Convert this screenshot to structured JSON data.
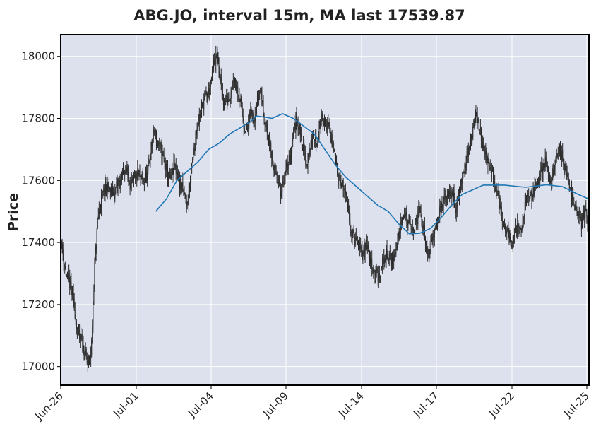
{
  "chart_data": {
    "type": "candlestick",
    "title": "ABG.JO, interval 15m, MA last 17539.87",
    "xlabel": "",
    "ylabel": "Price",
    "ylim": [
      16940,
      18070
    ],
    "y_ticks": [
      17000,
      17200,
      17400,
      17600,
      17800,
      18000
    ],
    "x_ticks": [
      "Jun-26",
      "Jul-01",
      "Jul-04",
      "Jul-09",
      "Jul-14",
      "Jul-17",
      "Jul-22",
      "Jul-25"
    ],
    "grid": true,
    "colors": {
      "background": "#dde1ee",
      "grid": "#ffffff",
      "candle": "#2b2b2b",
      "ma_line": "#1f77b4",
      "frame": "#000000"
    },
    "price_path": [
      [
        0,
        17400
      ],
      [
        1,
        17320
      ],
      [
        2,
        17280
      ],
      [
        3,
        17250
      ],
      [
        4,
        17180
      ],
      [
        5,
        17100
      ],
      [
        6,
        17080
      ],
      [
        7,
        17050
      ],
      [
        8,
        17000
      ],
      [
        9,
        17050
      ],
      [
        10,
        17320
      ],
      [
        11,
        17480
      ],
      [
        12,
        17540
      ],
      [
        13,
        17570
      ],
      [
        14,
        17580
      ],
      [
        15,
        17560
      ],
      [
        16,
        17560
      ],
      [
        17,
        17590
      ],
      [
        18,
        17600
      ],
      [
        19,
        17640
      ],
      [
        20,
        17620
      ],
      [
        21,
        17580
      ],
      [
        22,
        17600
      ],
      [
        23,
        17620
      ],
      [
        24,
        17600
      ],
      [
        25,
        17600
      ],
      [
        26,
        17620
      ],
      [
        27,
        17700
      ],
      [
        28,
        17760
      ],
      [
        29,
        17720
      ],
      [
        30,
        17700
      ],
      [
        31,
        17660
      ],
      [
        32,
        17620
      ],
      [
        33,
        17600
      ],
      [
        34,
        17650
      ],
      [
        35,
        17620
      ],
      [
        36,
        17580
      ],
      [
        37,
        17560
      ],
      [
        38,
        17520
      ],
      [
        39,
        17620
      ],
      [
        40,
        17700
      ],
      [
        41,
        17780
      ],
      [
        42,
        17820
      ],
      [
        43,
        17860
      ],
      [
        44,
        17880
      ],
      [
        45,
        17900
      ],
      [
        46,
        17980
      ],
      [
        47,
        18000
      ],
      [
        48,
        17920
      ],
      [
        49,
        17850
      ],
      [
        50,
        17860
      ],
      [
        51,
        17880
      ],
      [
        52,
        17940
      ],
      [
        53,
        17900
      ],
      [
        54,
        17860
      ],
      [
        55,
        17780
      ],
      [
        56,
        17760
      ],
      [
        57,
        17820
      ],
      [
        58,
        17800
      ],
      [
        59,
        17850
      ],
      [
        60,
        17900
      ],
      [
        61,
        17820
      ],
      [
        62,
        17760
      ],
      [
        63,
        17700
      ],
      [
        64,
        17650
      ],
      [
        65,
        17600
      ],
      [
        66,
        17560
      ],
      [
        67,
        17600
      ],
      [
        68,
        17640
      ],
      [
        69,
        17680
      ],
      [
        70,
        17760
      ],
      [
        71,
        17800
      ],
      [
        72,
        17760
      ],
      [
        73,
        17700
      ],
      [
        74,
        17650
      ],
      [
        75,
        17700
      ],
      [
        76,
        17740
      ],
      [
        77,
        17720
      ],
      [
        78,
        17780
      ],
      [
        79,
        17800
      ],
      [
        80,
        17780
      ],
      [
        81,
        17760
      ],
      [
        82,
        17700
      ],
      [
        83,
        17650
      ],
      [
        84,
        17600
      ],
      [
        85,
        17580
      ],
      [
        86,
        17540
      ],
      [
        87,
        17460
      ],
      [
        88,
        17420
      ],
      [
        89,
        17400
      ],
      [
        90,
        17380
      ],
      [
        91,
        17360
      ],
      [
        92,
        17400
      ],
      [
        93,
        17350
      ],
      [
        94,
        17320
      ],
      [
        95,
        17300
      ],
      [
        96,
        17280
      ],
      [
        97,
        17340
      ],
      [
        98,
        17360
      ],
      [
        99,
        17350
      ],
      [
        100,
        17340
      ],
      [
        101,
        17380
      ],
      [
        102,
        17440
      ],
      [
        103,
        17500
      ],
      [
        104,
        17480
      ],
      [
        105,
        17450
      ],
      [
        106,
        17440
      ],
      [
        107,
        17460
      ],
      [
        108,
        17500
      ],
      [
        109,
        17460
      ],
      [
        110,
        17400
      ],
      [
        111,
        17360
      ],
      [
        112,
        17420
      ],
      [
        113,
        17460
      ],
      [
        114,
        17500
      ],
      [
        115,
        17520
      ],
      [
        116,
        17540
      ],
      [
        117,
        17560
      ],
      [
        118,
        17560
      ],
      [
        119,
        17500
      ],
      [
        120,
        17560
      ],
      [
        121,
        17620
      ],
      [
        122,
        17660
      ],
      [
        123,
        17700
      ],
      [
        124,
        17760
      ],
      [
        125,
        17820
      ],
      [
        126,
        17780
      ],
      [
        127,
        17720
      ],
      [
        128,
        17680
      ],
      [
        129,
        17640
      ],
      [
        130,
        17620
      ],
      [
        131,
        17580
      ],
      [
        132,
        17540
      ],
      [
        133,
        17480
      ],
      [
        134,
        17440
      ],
      [
        135,
        17420
      ],
      [
        136,
        17400
      ],
      [
        137,
        17440
      ],
      [
        138,
        17460
      ],
      [
        139,
        17440
      ],
      [
        140,
        17520
      ],
      [
        141,
        17560
      ],
      [
        142,
        17540
      ],
      [
        143,
        17580
      ],
      [
        144,
        17600
      ],
      [
        145,
        17640
      ],
      [
        146,
        17660
      ],
      [
        147,
        17620
      ],
      [
        148,
        17600
      ],
      [
        149,
        17660
      ],
      [
        150,
        17700
      ],
      [
        151,
        17680
      ],
      [
        152,
        17640
      ],
      [
        153,
        17600
      ],
      [
        154,
        17560
      ],
      [
        155,
        17520
      ],
      [
        156,
        17480
      ],
      [
        157,
        17460
      ],
      [
        158,
        17500
      ],
      [
        159,
        17480
      ]
    ],
    "ma_line": [
      [
        0.18,
        17500
      ],
      [
        0.2,
        17540
      ],
      [
        0.22,
        17600
      ],
      [
        0.24,
        17630
      ],
      [
        0.26,
        17660
      ],
      [
        0.28,
        17700
      ],
      [
        0.3,
        17720
      ],
      [
        0.32,
        17750
      ],
      [
        0.34,
        17770
      ],
      [
        0.36,
        17790
      ],
      [
        0.37,
        17808
      ],
      [
        0.4,
        17800
      ],
      [
        0.42,
        17815
      ],
      [
        0.44,
        17800
      ],
      [
        0.46,
        17775
      ],
      [
        0.48,
        17750
      ],
      [
        0.5,
        17700
      ],
      [
        0.52,
        17650
      ],
      [
        0.54,
        17610
      ],
      [
        0.56,
        17580
      ],
      [
        0.58,
        17550
      ],
      [
        0.6,
        17520
      ],
      [
        0.62,
        17500
      ],
      [
        0.64,
        17460
      ],
      [
        0.66,
        17428
      ],
      [
        0.68,
        17430
      ],
      [
        0.7,
        17445
      ],
      [
        0.72,
        17480
      ],
      [
        0.74,
        17520
      ],
      [
        0.76,
        17555
      ],
      [
        0.78,
        17570
      ],
      [
        0.8,
        17585
      ],
      [
        0.84,
        17585
      ],
      [
        0.88,
        17578
      ],
      [
        0.92,
        17586
      ],
      [
        0.95,
        17580
      ],
      [
        0.98,
        17555
      ],
      [
        1.0,
        17540
      ]
    ]
  }
}
